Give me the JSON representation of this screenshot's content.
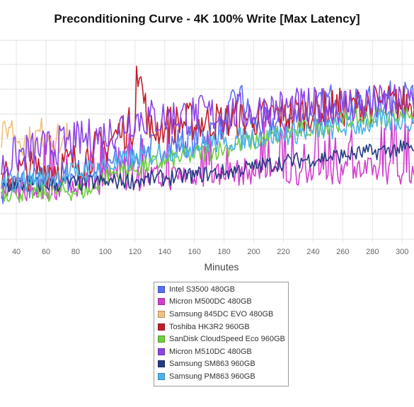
{
  "chart_data": {
    "type": "line",
    "title": "Preconditioning Curve - 4K 100% Write [Max Latency]",
    "xlabel": "Minutes",
    "ylabel": "",
    "x_ticks": [
      40,
      60,
      80,
      100,
      120,
      140,
      160,
      180,
      200,
      220,
      240,
      260,
      280,
      300
    ],
    "x_visible_range": [
      29,
      308
    ],
    "grid": true,
    "legend_position": "bottom-center",
    "series": [
      {
        "name": "Intel S3500 480GB",
        "color": "#5a6ff0",
        "points": [
          [
            30,
            7.5
          ],
          [
            40,
            7.8
          ],
          [
            60,
            8.5
          ],
          [
            80,
            9.2
          ],
          [
            100,
            10.5
          ],
          [
            120,
            12.5
          ],
          [
            140,
            13.5
          ],
          [
            160,
            14.5
          ],
          [
            180,
            16.5
          ],
          [
            190,
            21.5
          ],
          [
            200,
            16.5
          ],
          [
            220,
            17
          ],
          [
            240,
            18.5
          ],
          [
            255,
            21
          ],
          [
            260,
            19
          ],
          [
            280,
            20
          ],
          [
            300,
            21
          ],
          [
            308,
            20
          ]
        ]
      },
      {
        "name": "Micron M500DC 480GB",
        "color": "#d23fcf",
        "points": [
          [
            30,
            6.5
          ],
          [
            40,
            7
          ],
          [
            60,
            7.5
          ],
          [
            80,
            8
          ],
          [
            100,
            8.5
          ],
          [
            120,
            9
          ],
          [
            140,
            9
          ],
          [
            160,
            9.5
          ],
          [
            180,
            9.5
          ],
          [
            200,
            10
          ],
          [
            220,
            9.5
          ],
          [
            240,
            10
          ],
          [
            260,
            10
          ],
          [
            280,
            10
          ],
          [
            300,
            10
          ],
          [
            308,
            10
          ]
        ]
      },
      {
        "name": "Samsung 845DC EVO 480GB",
        "color": "#f0c080",
        "points": [
          [
            30,
            14
          ],
          [
            35,
            17
          ],
          [
            40,
            15
          ],
          [
            50,
            14
          ],
          [
            60,
            16
          ],
          [
            70,
            14
          ],
          [
            75,
            15
          ]
        ]
      },
      {
        "name": "Toshiba HK3R2 960GB",
        "color": "#c2202a",
        "points": [
          [
            30,
            8
          ],
          [
            40,
            9.5
          ],
          [
            60,
            10
          ],
          [
            80,
            11
          ],
          [
            100,
            13.5
          ],
          [
            110,
            15.5
          ],
          [
            120,
            16.5
          ],
          [
            121,
            26
          ],
          [
            130,
            15.5
          ],
          [
            140,
            16.5
          ],
          [
            160,
            17
          ],
          [
            180,
            17
          ],
          [
            200,
            17.5
          ],
          [
            220,
            18
          ],
          [
            240,
            18.5
          ],
          [
            260,
            19
          ],
          [
            280,
            19.5
          ],
          [
            300,
            19.5
          ],
          [
            308,
            19.5
          ]
        ]
      },
      {
        "name": "SanDisk CloudSpeed Eco 960GB",
        "color": "#6ecf3f",
        "points": [
          [
            30,
            7
          ],
          [
            40,
            7
          ],
          [
            60,
            7
          ],
          [
            80,
            7.2
          ],
          [
            90,
            7.3
          ],
          [
            100,
            9.5
          ],
          [
            120,
            10.5
          ],
          [
            140,
            11.5
          ],
          [
            160,
            12.5
          ],
          [
            180,
            13.5
          ],
          [
            200,
            14.5
          ],
          [
            220,
            15.5
          ],
          [
            240,
            16.5
          ],
          [
            260,
            17.5
          ],
          [
            280,
            18
          ],
          [
            300,
            18.5
          ],
          [
            308,
            18.5
          ]
        ]
      },
      {
        "name": "Micron M510DC 480GB",
        "color": "#8b44e6",
        "points": [
          [
            30,
            10
          ],
          [
            40,
            12
          ],
          [
            60,
            13
          ],
          [
            80,
            14
          ],
          [
            100,
            15
          ],
          [
            120,
            17.5
          ],
          [
            140,
            17.5
          ],
          [
            160,
            18
          ],
          [
            180,
            18
          ],
          [
            200,
            18.5
          ],
          [
            220,
            19
          ],
          [
            240,
            19
          ],
          [
            260,
            19.5
          ],
          [
            280,
            19.5
          ],
          [
            300,
            19.5
          ],
          [
            308,
            19.5
          ]
        ]
      },
      {
        "name": "Samsung SM863 960GB",
        "color": "#253a80",
        "points": [
          [
            30,
            8
          ],
          [
            40,
            8
          ],
          [
            60,
            8.2
          ],
          [
            80,
            8.4
          ],
          [
            100,
            8.6
          ],
          [
            120,
            8.8
          ],
          [
            140,
            9.2
          ],
          [
            160,
            9.6
          ],
          [
            180,
            10
          ],
          [
            200,
            10.8
          ],
          [
            220,
            11.5
          ],
          [
            240,
            12
          ],
          [
            260,
            12.5
          ],
          [
            280,
            13
          ],
          [
            300,
            13.5
          ],
          [
            308,
            13.5
          ]
        ]
      },
      {
        "name": "Samsung PM863 960GB",
        "color": "#4bb4ea",
        "points": [
          [
            30,
            8
          ],
          [
            40,
            8.5
          ],
          [
            60,
            9
          ],
          [
            80,
            9.8
          ],
          [
            100,
            10.8
          ],
          [
            120,
            11.8
          ],
          [
            140,
            13
          ],
          [
            160,
            13.8
          ],
          [
            180,
            14.5
          ],
          [
            200,
            15
          ],
          [
            220,
            15.5
          ],
          [
            240,
            16
          ],
          [
            260,
            16.5
          ],
          [
            280,
            17
          ],
          [
            300,
            17.5
          ],
          [
            308,
            17.5
          ]
        ]
      }
    ]
  }
}
